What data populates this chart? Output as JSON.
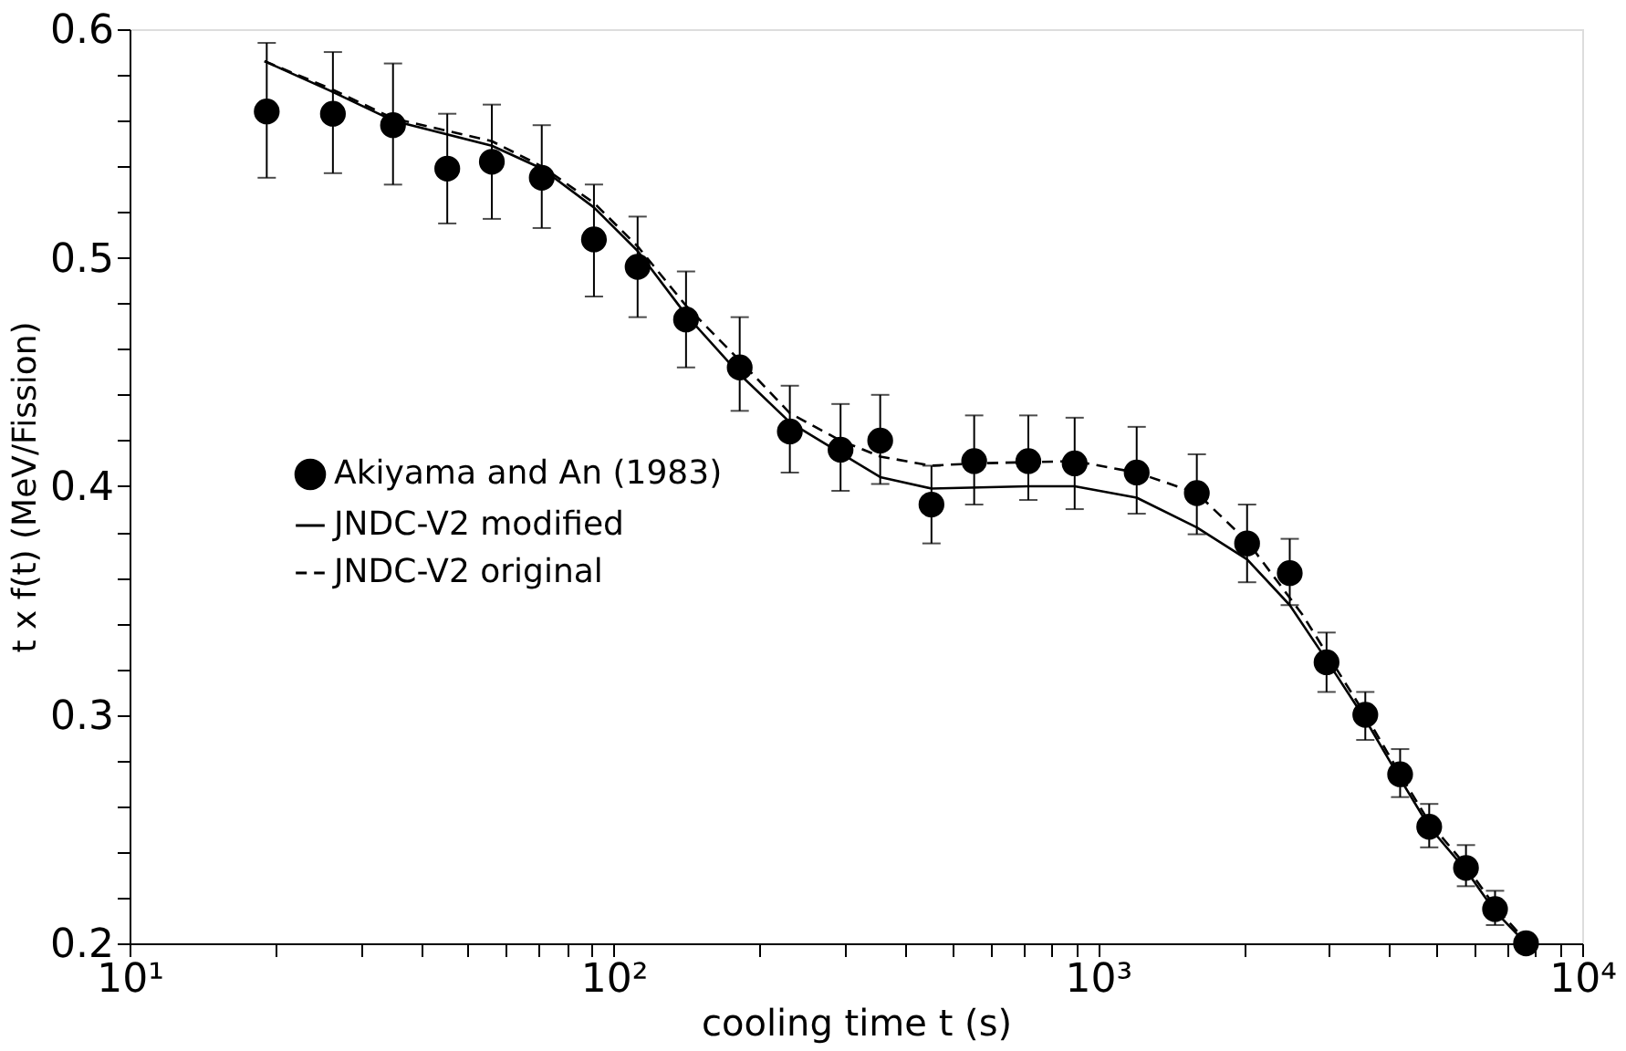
{
  "chart_data": {
    "type": "scatter",
    "xlabel": "cooling time t (s)",
    "ylabel": "t x f(t)  (MeV/Fission)",
    "log": "x",
    "grid": false,
    "legend": "left",
    "xlim": [
      10,
      10000
    ],
    "ylim": [
      0.2,
      0.6
    ],
    "xticks": [
      {
        "value": 10,
        "label": "10¹"
      },
      {
        "value": 20,
        "label": null
      },
      {
        "value": 30,
        "label": null
      },
      {
        "value": 40,
        "label": null
      },
      {
        "value": 50,
        "label": null
      },
      {
        "value": 60,
        "label": null
      },
      {
        "value": 70,
        "label": null
      },
      {
        "value": 80,
        "label": null
      },
      {
        "value": 90,
        "label": null
      },
      {
        "value": 100,
        "label": "10²"
      },
      {
        "value": 200,
        "label": null
      },
      {
        "value": 300,
        "label": null
      },
      {
        "value": 400,
        "label": null
      },
      {
        "value": 500,
        "label": null
      },
      {
        "value": 600,
        "label": null
      },
      {
        "value": 700,
        "label": null
      },
      {
        "value": 800,
        "label": null
      },
      {
        "value": 900,
        "label": null
      },
      {
        "value": 1000,
        "label": "10³"
      },
      {
        "value": 2000,
        "label": null
      },
      {
        "value": 3000,
        "label": null
      },
      {
        "value": 4000,
        "label": null
      },
      {
        "value": 5000,
        "label": null
      },
      {
        "value": 6000,
        "label": null
      },
      {
        "value": 7000,
        "label": null
      },
      {
        "value": 8000,
        "label": null
      },
      {
        "value": 9000,
        "label": null
      },
      {
        "value": 10000,
        "label": "10⁴"
      }
    ],
    "yticks": [
      0.2,
      {
        "value": 0.22,
        "label": null
      },
      {
        "value": 0.24,
        "label": null
      },
      {
        "value": 0.26,
        "label": null
      },
      {
        "value": 0.28,
        "label": null
      },
      0.3,
      {
        "value": 0.32,
        "label": null
      },
      {
        "value": 0.34,
        "label": null
      },
      {
        "value": 0.36,
        "label": null
      },
      {
        "value": 0.38,
        "label": null
      },
      0.4,
      {
        "value": 0.42,
        "label": null
      },
      {
        "value": 0.44,
        "label": null
      },
      {
        "value": 0.46,
        "label": null
      },
      {
        "value": 0.48,
        "label": null
      },
      0.5,
      {
        "value": 0.52,
        "label": null
      },
      {
        "value": 0.54,
        "label": null
      },
      {
        "value": 0.56,
        "label": null
      },
      {
        "value": 0.58,
        "label": null
      },
      0.6
    ],
    "series": [
      {
        "name": "Akiyama and An (1983)",
        "color": "#000000",
        "marker": "circle",
        "x": [
          19.2,
          26.3,
          35,
          45.3,
          56,
          71,
          91,
          112,
          141,
          182,
          231,
          294,
          355,
          453,
          555,
          718,
          895,
          1202,
          1600,
          2032,
          2489,
          2965,
          3565,
          4207,
          4831,
          5754,
          6607,
          7656
        ],
        "values": [
          0.564,
          0.563,
          0.558,
          0.539,
          0.542,
          0.535,
          0.508,
          0.496,
          0.473,
          0.452,
          0.424,
          0.416,
          0.42,
          0.392,
          0.411,
          0.411,
          0.41,
          0.406,
          0.397,
          0.375,
          0.362,
          0.323,
          0.3,
          0.274,
          0.251,
          0.233,
          0.215,
          0.2
        ],
        "errors": [
          [
            0.535,
            0.594
          ],
          [
            0.537,
            0.59
          ],
          [
            0.532,
            0.585
          ],
          [
            0.515,
            0.563
          ],
          [
            0.517,
            0.567
          ],
          [
            0.513,
            0.558
          ],
          [
            0.483,
            0.532
          ],
          [
            0.474,
            0.518
          ],
          [
            0.452,
            0.494
          ],
          [
            0.433,
            0.474
          ],
          [
            0.406,
            0.444
          ],
          [
            0.398,
            0.436
          ],
          [
            0.401,
            0.44
          ],
          [
            0.375,
            0.409
          ],
          [
            0.392,
            0.431
          ],
          [
            0.394,
            0.431
          ],
          [
            0.39,
            0.43
          ],
          [
            0.388,
            0.426
          ],
          [
            0.379,
            0.414
          ],
          [
            0.358,
            0.392
          ],
          [
            0.348,
            0.377
          ],
          [
            0.31,
            0.336
          ],
          [
            0.289,
            0.31
          ],
          [
            0.264,
            0.285
          ],
          [
            0.242,
            0.261
          ],
          [
            0.225,
            0.243
          ],
          [
            0.208,
            0.223
          ],
          null
        ]
      },
      {
        "name": "JNDC-V2 modified",
        "type": "line",
        "color": "#000000",
        "line_style": "solid",
        "x": [
          19,
          26,
          35,
          56,
          71,
          91,
          112,
          141,
          182,
          231,
          355,
          453,
          718,
          895,
          1202,
          1600,
          2032,
          2489,
          2965,
          3565,
          4207,
          4831,
          5754,
          6607,
          7656
        ],
        "values": [
          0.586,
          0.573,
          0.56,
          0.549,
          0.539,
          0.522,
          0.503,
          0.475,
          0.449,
          0.428,
          0.404,
          0.399,
          0.4,
          0.4,
          0.395,
          0.382,
          0.368,
          0.348,
          0.324,
          0.298,
          0.272,
          0.251,
          0.232,
          0.214,
          0.2
        ]
      },
      {
        "name": "JNDC-V2 original",
        "type": "line",
        "color": "#000000",
        "line_style": "dashed",
        "x": [
          19,
          26,
          35,
          56,
          71,
          91,
          112,
          141,
          182,
          231,
          294,
          355,
          453,
          555,
          895,
          1202,
          1600,
          2032,
          2640,
          2965,
          3565,
          4207,
          4831,
          5754,
          6607,
          7656
        ],
        "values": [
          0.586,
          0.574,
          0.561,
          0.551,
          0.54,
          0.524,
          0.505,
          0.479,
          0.455,
          0.432,
          0.42,
          0.413,
          0.409,
          0.41,
          0.411,
          0.406,
          0.397,
          0.376,
          0.344,
          0.327,
          0.3,
          0.274,
          0.253,
          0.234,
          0.216,
          0.201
        ]
      }
    ]
  }
}
